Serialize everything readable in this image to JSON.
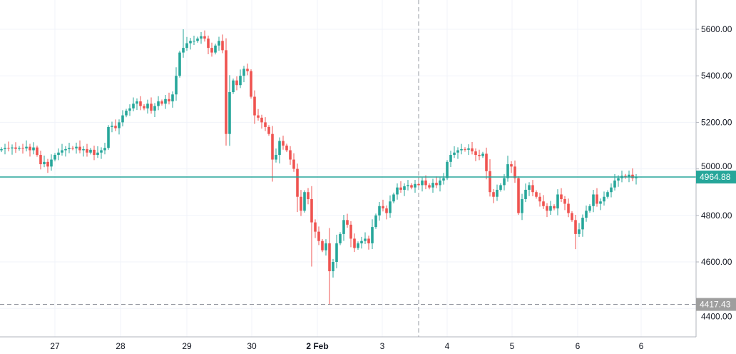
{
  "chart_data": {
    "type": "candlestick",
    "title": "",
    "ylim": [
      4280,
      5730
    ],
    "y_ticks": [
      "4400.00",
      "4600.00",
      "4800.00",
      "5000.00",
      "5200.00",
      "5400.00",
      "5600.00"
    ],
    "y_tick_values": [
      4400,
      4600,
      4800,
      5000,
      5200,
      5400,
      5600
    ],
    "x_ticks": [
      {
        "label": "27",
        "index": 15,
        "bold": false
      },
      {
        "label": "28",
        "index": 33.4,
        "bold": false
      },
      {
        "label": "29",
        "index": 52,
        "bold": false
      },
      {
        "label": "30",
        "index": 70.2,
        "bold": false
      },
      {
        "label": "2 Feb",
        "index": 88.6,
        "bold": true
      },
      {
        "label": "3",
        "index": 106.8,
        "bold": false
      },
      {
        "label": "4",
        "index": 125,
        "bold": false
      },
      {
        "label": "5",
        "index": 143.2,
        "bold": false
      },
      {
        "label": "6",
        "index": 161.6,
        "bold": false
      },
      {
        "label": "6",
        "index": 179.4,
        "bold": false
      }
    ],
    "grid": true,
    "current_price": 4964.88,
    "current_price_label": "4964.88",
    "crosshair_price": 4417.43,
    "crosshair_price_label": "4417.43",
    "crosshair_index": 117,
    "colors": {
      "up": "#26a69a",
      "down": "#ef5350",
      "grid": "#f0f3fa",
      "crosshair": "#9598a1",
      "price_line": "#26a69a"
    },
    "first_open": 5080,
    "closes": [
      5085,
      5090,
      5088,
      5092,
      5086,
      5090,
      5088,
      5095,
      5080,
      5092,
      5060,
      5020,
      5030,
      5010,
      5040,
      5060,
      5070,
      5080,
      5085,
      5090,
      5088,
      5095,
      5080,
      5085,
      5070,
      5082,
      5060,
      5070,
      5080,
      5090,
      5180,
      5185,
      5175,
      5200,
      5230,
      5250,
      5260,
      5280,
      5290,
      5270,
      5260,
      5280,
      5250,
      5270,
      5290,
      5280,
      5300,
      5290,
      5320,
      5400,
      5500,
      5520,
      5540,
      5550,
      5550,
      5560,
      5570,
      5560,
      5520,
      5500,
      5530,
      5550,
      5510,
      5150,
      5330,
      5380,
      5360,
      5400,
      5430,
      5420,
      5310,
      5230,
      5220,
      5200,
      5180,
      5150,
      5040,
      5060,
      5120,
      5100,
      5080,
      5040,
      5000,
      4880,
      4820,
      4900,
      4870,
      4770,
      4730,
      4690,
      4650,
      4680,
      4560,
      4600,
      4680,
      4720,
      4780,
      4760,
      4700,
      4660,
      4680,
      4690,
      4700,
      4680,
      4750,
      4800,
      4840,
      4830,
      4810,
      4860,
      4890,
      4920,
      4910,
      4925,
      4930,
      4920,
      4935,
      4930,
      4950,
      4930,
      4920,
      4940,
      4930,
      4950,
      4960,
      5030,
      5060,
      5070,
      5080,
      5085,
      5082,
      5088,
      5075,
      5060,
      5055,
      5065,
      4990,
      4900,
      4880,
      4910,
      4930,
      4960,
      5020,
      5010,
      4960,
      4810,
      4870,
      4910,
      4930,
      4900,
      4880,
      4860,
      4840,
      4820,
      4840,
      4830,
      4890,
      4870,
      4850,
      4810,
      4780,
      4720,
      4740,
      4790,
      4820,
      4840,
      4890,
      4850,
      4860,
      4880,
      4900,
      4920,
      4950,
      4960,
      4970,
      4965,
      4975,
      4960,
      4964.88
    ],
    "extreme_lows": {
      "92": 4417.43,
      "63": 5100,
      "76": 4945,
      "87": 4580,
      "161": 4655
    },
    "extreme_highs": {
      "51": 5600,
      "57": 5595
    }
  }
}
